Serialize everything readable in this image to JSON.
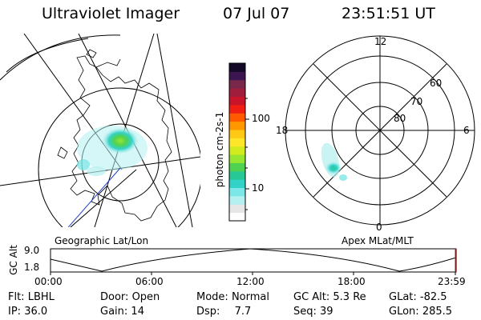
{
  "header": {
    "title": "Ultraviolet Imager",
    "date": "07 Jul 07",
    "time": "23:51:51 UT"
  },
  "geo_panel": {
    "caption": "Geographic Lat/Lon"
  },
  "polar_panel": {
    "caption": "Apex MLat/MLT",
    "mlt_labels": {
      "top": "12",
      "bottom": "0",
      "left": "18",
      "right": "6"
    },
    "lat_labels": [
      "60",
      "70",
      "80"
    ]
  },
  "colorbar": {
    "unit": "photon cm-2s-1",
    "tick_labels": [
      "100",
      "10"
    ],
    "colors": [
      "#ffffff",
      "#e6e6e6",
      "#b4f0f0",
      "#7de6e6",
      "#32d2c8",
      "#28c896",
      "#50d250",
      "#96e632",
      "#d2eb1e",
      "#ffe628",
      "#ffc814",
      "#ff9600",
      "#ff5a00",
      "#f01e14",
      "#c81428",
      "#a01e3c",
      "#78284b",
      "#3c1450",
      "#140a28"
    ]
  },
  "altitude_plot": {
    "ylabel": "GC Alt",
    "y_ticks": [
      "9.0",
      "1.8"
    ],
    "x_ticks": [
      "00:00",
      "06:00",
      "12:00",
      "18:00",
      "23:59"
    ],
    "line_color": "#000000",
    "marker_color": "#c83232"
  },
  "info": {
    "row1": [
      {
        "label": "Flt:",
        "value": "LBHL"
      },
      {
        "label": "Door:",
        "value": "Open"
      },
      {
        "label": "Mode:",
        "value": "Normal"
      },
      {
        "label": "GC Alt:",
        "value": "5.3 Re"
      },
      {
        "label": "GLat:",
        "value": "-82.5"
      }
    ],
    "row2": [
      {
        "label": "IP:",
        "value": "36.0"
      },
      {
        "label": "Gain:",
        "value": "14"
      },
      {
        "label": "Dsp:",
        "value": "7.7"
      },
      {
        "label": "Seq:",
        "value": "39"
      },
      {
        "label": "GLon:",
        "value": "285.5"
      }
    ]
  }
}
